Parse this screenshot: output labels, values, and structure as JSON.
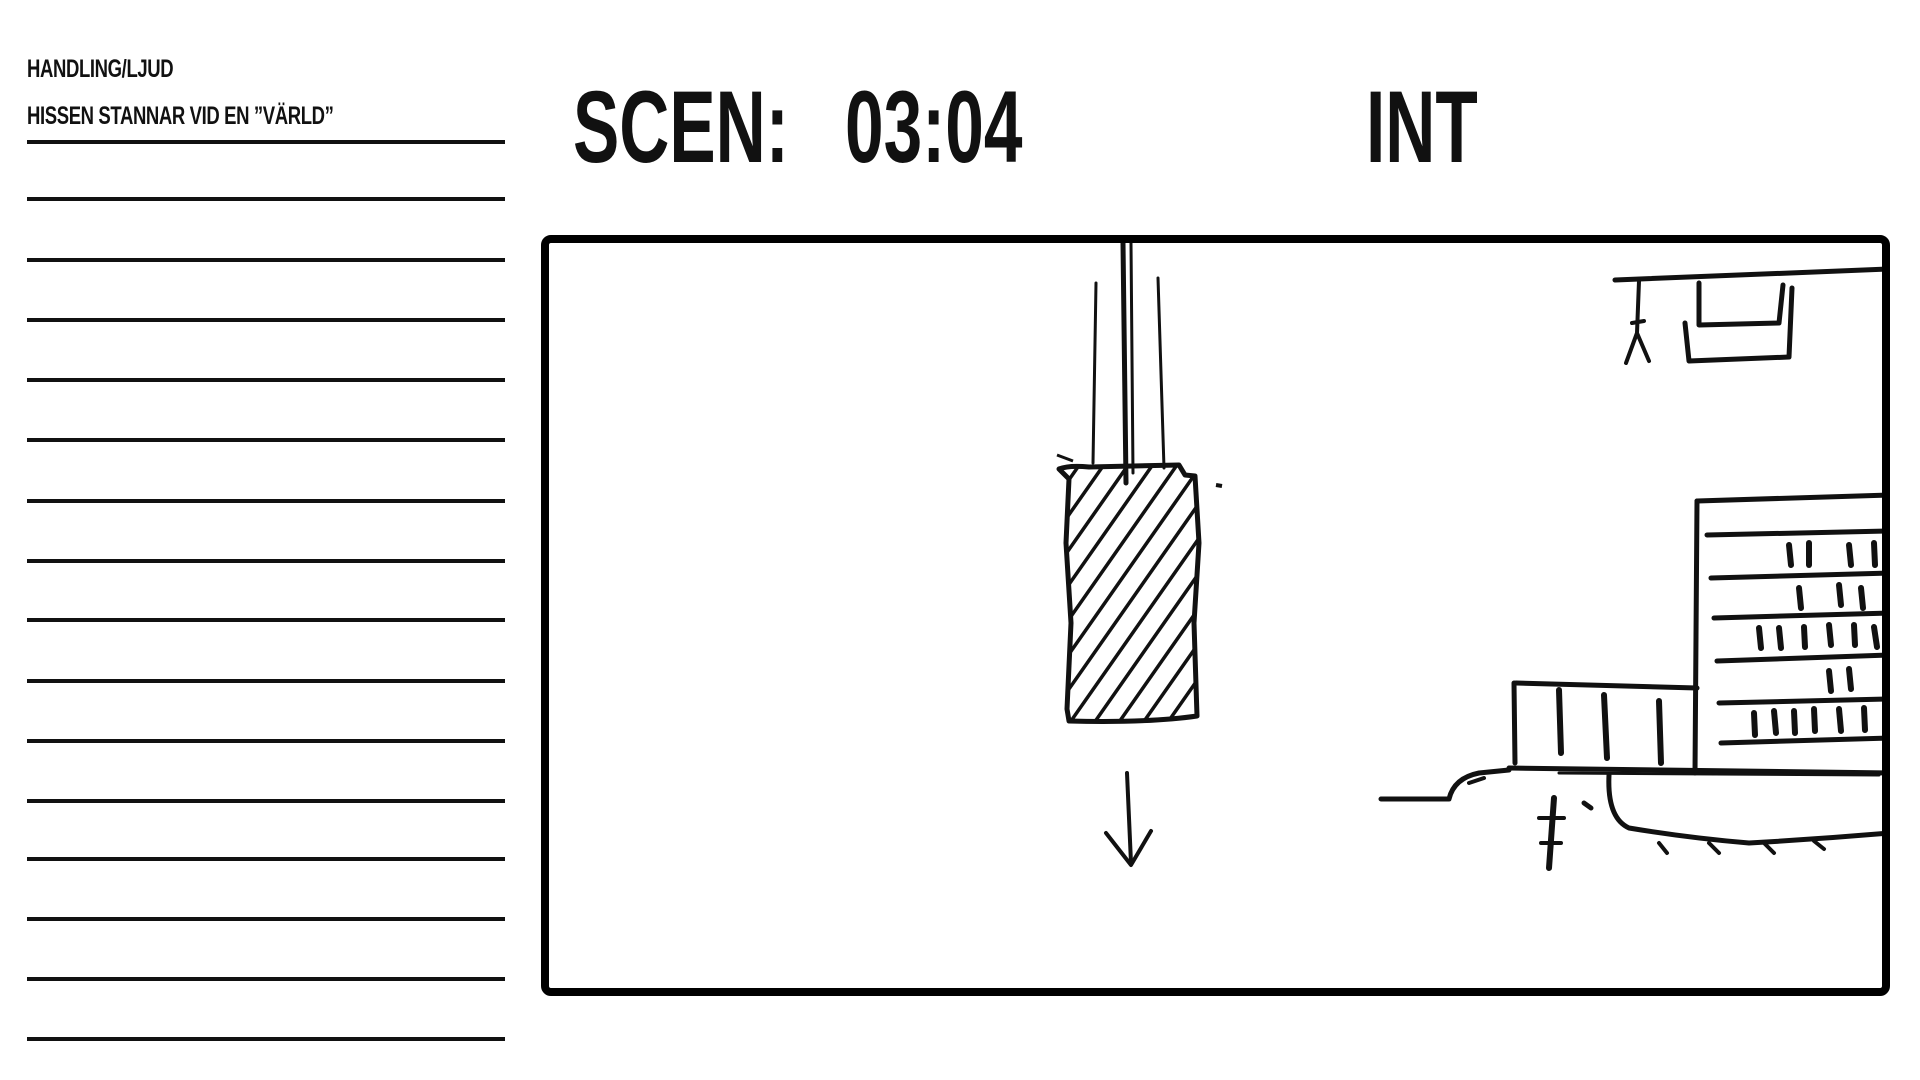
{
  "sidebar": {
    "heading": "HANDLING/LJUD",
    "action_text": "HISSEN STANNAR VID EN ”VÄRLD”",
    "line_count": 16
  },
  "header": {
    "scene_label": "SCEN:",
    "scene_number": "03:04",
    "int_ext": "INT"
  },
  "sketch": {
    "content": [
      "elevator-car",
      "down-arrow",
      "shelf-structure"
    ]
  },
  "colors": {
    "ink": "#111111",
    "background": "#ffffff"
  }
}
